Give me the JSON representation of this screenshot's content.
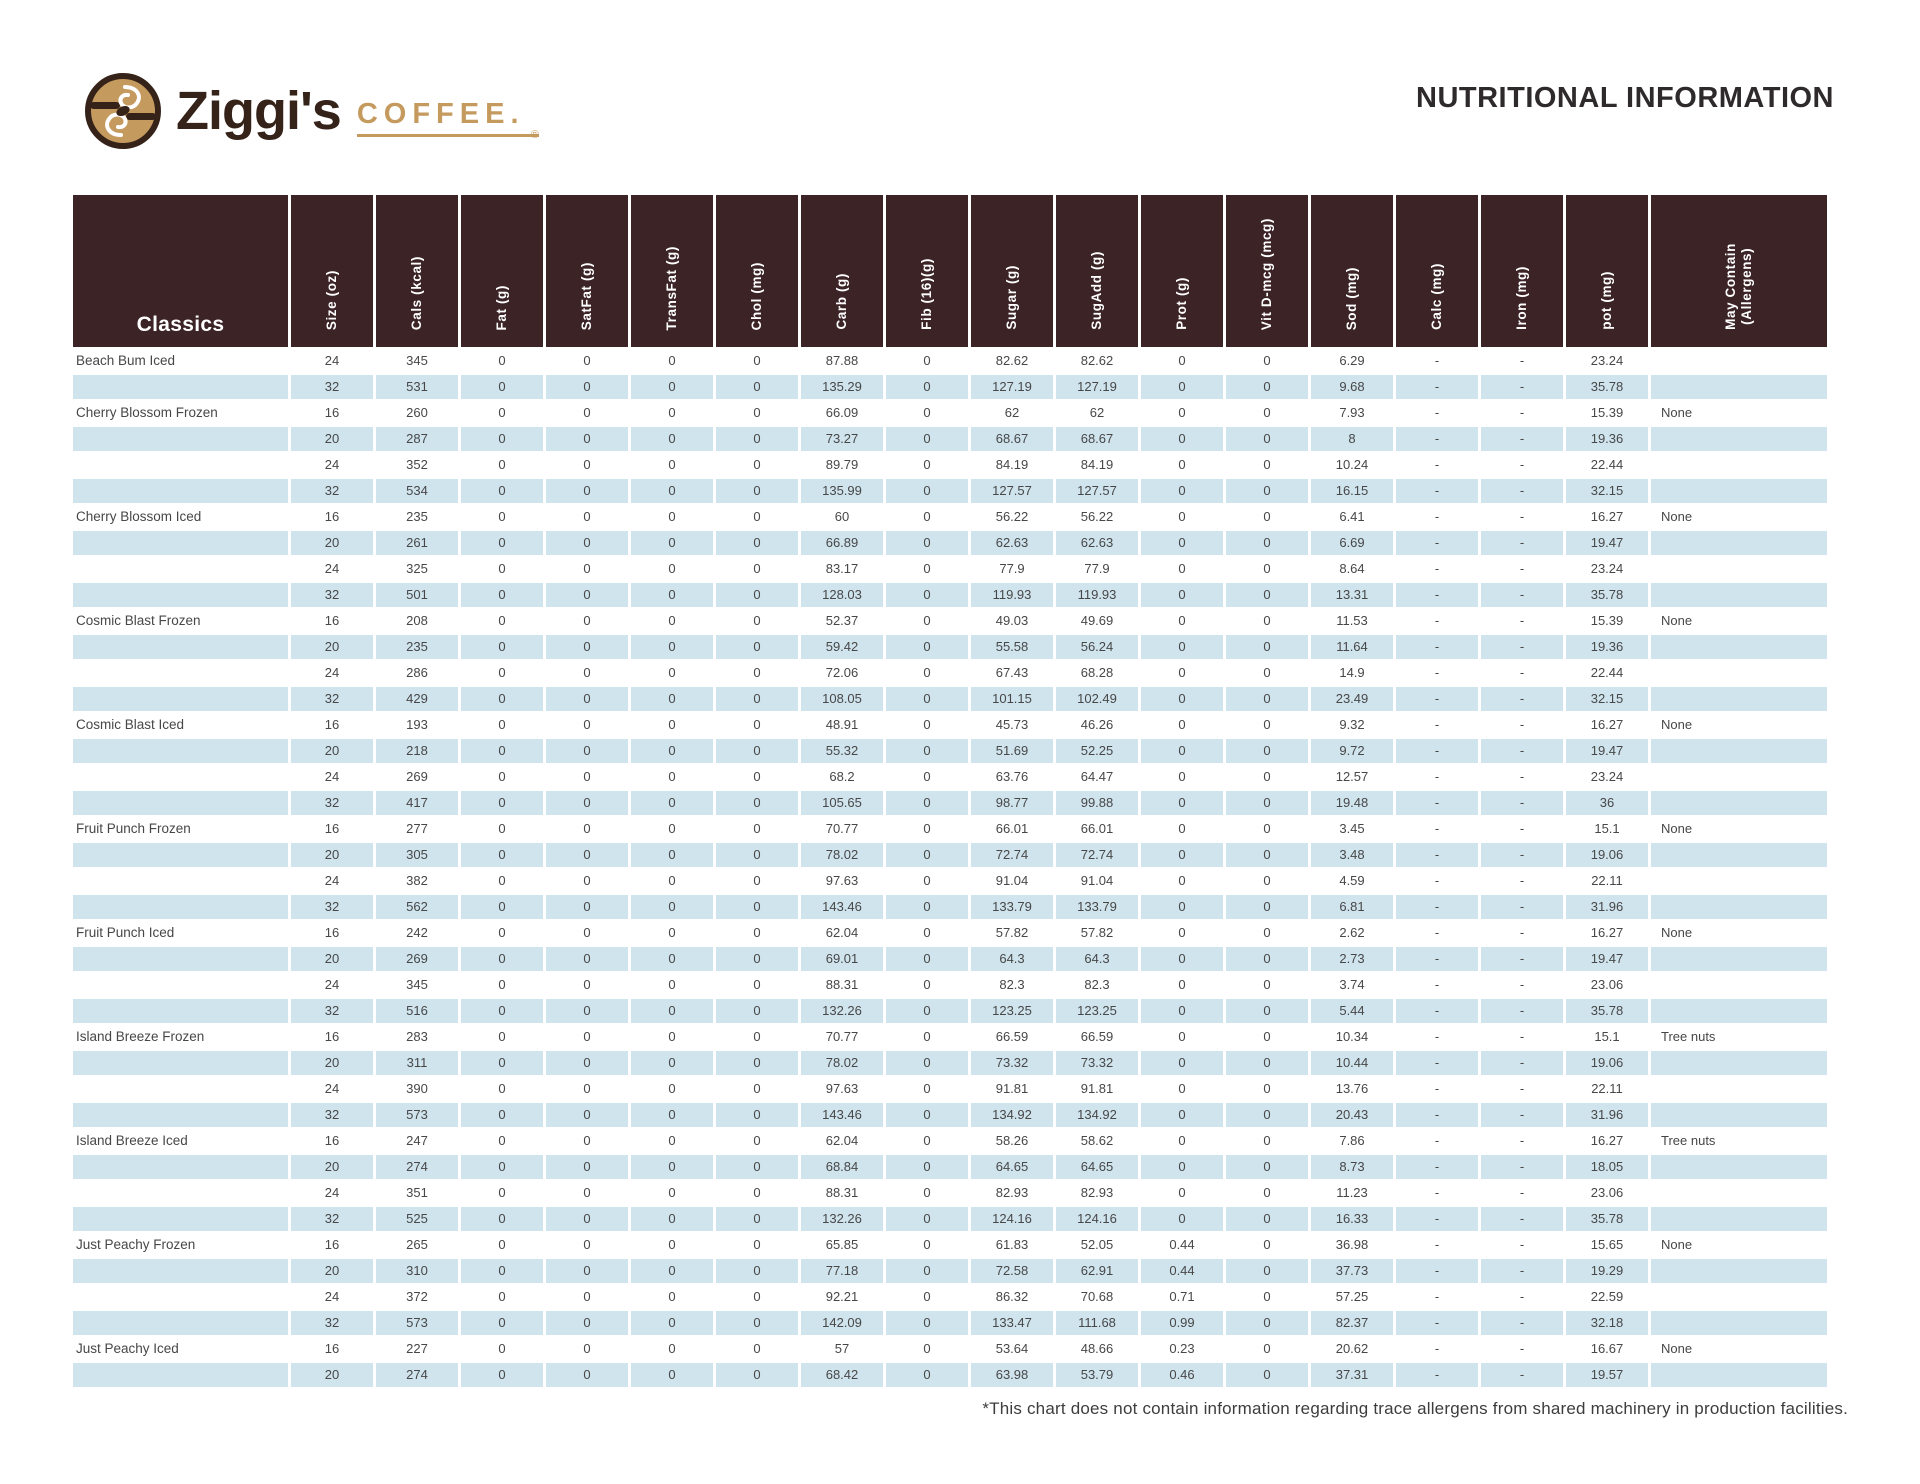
{
  "brand": {
    "name": "Ziggi's",
    "word": "COFFEE.",
    "reg": "®"
  },
  "page_title": "NUTRITIONAL INFORMATION",
  "table": {
    "group_label": "Classics",
    "columns": [
      "Size (oz)",
      "Cals (kcal)",
      "Fat (g)",
      "SatFat (g)",
      "TransFat (g)",
      "Chol (mg)",
      "Carb (g)",
      "Fib (16)(g)",
      "Sugar (g)",
      "SugAdd (g)",
      "Prot (g)",
      "Vit D-mcg (mcg)",
      "Sod (mg)",
      "Calc (mg)",
      "Iron (mg)",
      "pot (mg)",
      "May Contain\n(Allergens)"
    ],
    "rows": [
      {
        "name": "Beach Bum Iced",
        "values": [
          "24",
          "345",
          "0",
          "0",
          "0",
          "0",
          "87.88",
          "0",
          "82.62",
          "82.62",
          "0",
          "0",
          "6.29",
          "-",
          "-",
          "23.24"
        ],
        "allergen": ""
      },
      {
        "name": "",
        "values": [
          "32",
          "531",
          "0",
          "0",
          "0",
          "0",
          "135.29",
          "0",
          "127.19",
          "127.19",
          "0",
          "0",
          "9.68",
          "-",
          "-",
          "35.78"
        ],
        "allergen": ""
      },
      {
        "name": "Cherry Blossom Frozen",
        "values": [
          "16",
          "260",
          "0",
          "0",
          "0",
          "0",
          "66.09",
          "0",
          "62",
          "62",
          "0",
          "0",
          "7.93",
          "-",
          "-",
          "15.39"
        ],
        "allergen": "None"
      },
      {
        "name": "",
        "values": [
          "20",
          "287",
          "0",
          "0",
          "0",
          "0",
          "73.27",
          "0",
          "68.67",
          "68.67",
          "0",
          "0",
          "8",
          "-",
          "-",
          "19.36"
        ],
        "allergen": ""
      },
      {
        "name": "",
        "values": [
          "24",
          "352",
          "0",
          "0",
          "0",
          "0",
          "89.79",
          "0",
          "84.19",
          "84.19",
          "0",
          "0",
          "10.24",
          "-",
          "-",
          "22.44"
        ],
        "allergen": ""
      },
      {
        "name": "",
        "values": [
          "32",
          "534",
          "0",
          "0",
          "0",
          "0",
          "135.99",
          "0",
          "127.57",
          "127.57",
          "0",
          "0",
          "16.15",
          "-",
          "-",
          "32.15"
        ],
        "allergen": ""
      },
      {
        "name": "Cherry Blossom Iced",
        "values": [
          "16",
          "235",
          "0",
          "0",
          "0",
          "0",
          "60",
          "0",
          "56.22",
          "56.22",
          "0",
          "0",
          "6.41",
          "-",
          "-",
          "16.27"
        ],
        "allergen": "None"
      },
      {
        "name": "",
        "values": [
          "20",
          "261",
          "0",
          "0",
          "0",
          "0",
          "66.89",
          "0",
          "62.63",
          "62.63",
          "0",
          "0",
          "6.69",
          "-",
          "-",
          "19.47"
        ],
        "allergen": ""
      },
      {
        "name": "",
        "values": [
          "24",
          "325",
          "0",
          "0",
          "0",
          "0",
          "83.17",
          "0",
          "77.9",
          "77.9",
          "0",
          "0",
          "8.64",
          "-",
          "-",
          "23.24"
        ],
        "allergen": ""
      },
      {
        "name": "",
        "values": [
          "32",
          "501",
          "0",
          "0",
          "0",
          "0",
          "128.03",
          "0",
          "119.93",
          "119.93",
          "0",
          "0",
          "13.31",
          "-",
          "-",
          "35.78"
        ],
        "allergen": ""
      },
      {
        "name": "Cosmic Blast Frozen",
        "values": [
          "16",
          "208",
          "0",
          "0",
          "0",
          "0",
          "52.37",
          "0",
          "49.03",
          "49.69",
          "0",
          "0",
          "11.53",
          "-",
          "-",
          "15.39"
        ],
        "allergen": "None"
      },
      {
        "name": "",
        "values": [
          "20",
          "235",
          "0",
          "0",
          "0",
          "0",
          "59.42",
          "0",
          "55.58",
          "56.24",
          "0",
          "0",
          "11.64",
          "-",
          "-",
          "19.36"
        ],
        "allergen": ""
      },
      {
        "name": "",
        "values": [
          "24",
          "286",
          "0",
          "0",
          "0",
          "0",
          "72.06",
          "0",
          "67.43",
          "68.28",
          "0",
          "0",
          "14.9",
          "-",
          "-",
          "22.44"
        ],
        "allergen": ""
      },
      {
        "name": "",
        "values": [
          "32",
          "429",
          "0",
          "0",
          "0",
          "0",
          "108.05",
          "0",
          "101.15",
          "102.49",
          "0",
          "0",
          "23.49",
          "-",
          "-",
          "32.15"
        ],
        "allergen": ""
      },
      {
        "name": "Cosmic Blast Iced",
        "values": [
          "16",
          "193",
          "0",
          "0",
          "0",
          "0",
          "48.91",
          "0",
          "45.73",
          "46.26",
          "0",
          "0",
          "9.32",
          "-",
          "-",
          "16.27"
        ],
        "allergen": "None"
      },
      {
        "name": "",
        "values": [
          "20",
          "218",
          "0",
          "0",
          "0",
          "0",
          "55.32",
          "0",
          "51.69",
          "52.25",
          "0",
          "0",
          "9.72",
          "-",
          "-",
          "19.47"
        ],
        "allergen": ""
      },
      {
        "name": "",
        "values": [
          "24",
          "269",
          "0",
          "0",
          "0",
          "0",
          "68.2",
          "0",
          "63.76",
          "64.47",
          "0",
          "0",
          "12.57",
          "-",
          "-",
          "23.24"
        ],
        "allergen": ""
      },
      {
        "name": "",
        "values": [
          "32",
          "417",
          "0",
          "0",
          "0",
          "0",
          "105.65",
          "0",
          "98.77",
          "99.88",
          "0",
          "0",
          "19.48",
          "-",
          "-",
          "36"
        ],
        "allergen": ""
      },
      {
        "name": "Fruit Punch Frozen",
        "values": [
          "16",
          "277",
          "0",
          "0",
          "0",
          "0",
          "70.77",
          "0",
          "66.01",
          "66.01",
          "0",
          "0",
          "3.45",
          "-",
          "-",
          "15.1"
        ],
        "allergen": "None"
      },
      {
        "name": "",
        "values": [
          "20",
          "305",
          "0",
          "0",
          "0",
          "0",
          "78.02",
          "0",
          "72.74",
          "72.74",
          "0",
          "0",
          "3.48",
          "-",
          "-",
          "19.06"
        ],
        "allergen": ""
      },
      {
        "name": "",
        "values": [
          "24",
          "382",
          "0",
          "0",
          "0",
          "0",
          "97.63",
          "0",
          "91.04",
          "91.04",
          "0",
          "0",
          "4.59",
          "-",
          "-",
          "22.11"
        ],
        "allergen": ""
      },
      {
        "name": "",
        "values": [
          "32",
          "562",
          "0",
          "0",
          "0",
          "0",
          "143.46",
          "0",
          "133.79",
          "133.79",
          "0",
          "0",
          "6.81",
          "-",
          "-",
          "31.96"
        ],
        "allergen": ""
      },
      {
        "name": "Fruit Punch Iced",
        "values": [
          "16",
          "242",
          "0",
          "0",
          "0",
          "0",
          "62.04",
          "0",
          "57.82",
          "57.82",
          "0",
          "0",
          "2.62",
          "-",
          "-",
          "16.27"
        ],
        "allergen": "None"
      },
      {
        "name": "",
        "values": [
          "20",
          "269",
          "0",
          "0",
          "0",
          "0",
          "69.01",
          "0",
          "64.3",
          "64.3",
          "0",
          "0",
          "2.73",
          "-",
          "-",
          "19.47"
        ],
        "allergen": ""
      },
      {
        "name": "",
        "values": [
          "24",
          "345",
          "0",
          "0",
          "0",
          "0",
          "88.31",
          "0",
          "82.3",
          "82.3",
          "0",
          "0",
          "3.74",
          "-",
          "-",
          "23.06"
        ],
        "allergen": ""
      },
      {
        "name": "",
        "values": [
          "32",
          "516",
          "0",
          "0",
          "0",
          "0",
          "132.26",
          "0",
          "123.25",
          "123.25",
          "0",
          "0",
          "5.44",
          "-",
          "-",
          "35.78"
        ],
        "allergen": ""
      },
      {
        "name": "Island Breeze Frozen",
        "values": [
          "16",
          "283",
          "0",
          "0",
          "0",
          "0",
          "70.77",
          "0",
          "66.59",
          "66.59",
          "0",
          "0",
          "10.34",
          "-",
          "-",
          "15.1"
        ],
        "allergen": "Tree nuts"
      },
      {
        "name": "",
        "values": [
          "20",
          "311",
          "0",
          "0",
          "0",
          "0",
          "78.02",
          "0",
          "73.32",
          "73.32",
          "0",
          "0",
          "10.44",
          "-",
          "-",
          "19.06"
        ],
        "allergen": ""
      },
      {
        "name": "",
        "values": [
          "24",
          "390",
          "0",
          "0",
          "0",
          "0",
          "97.63",
          "0",
          "91.81",
          "91.81",
          "0",
          "0",
          "13.76",
          "-",
          "-",
          "22.11"
        ],
        "allergen": ""
      },
      {
        "name": "",
        "values": [
          "32",
          "573",
          "0",
          "0",
          "0",
          "0",
          "143.46",
          "0",
          "134.92",
          "134.92",
          "0",
          "0",
          "20.43",
          "-",
          "-",
          "31.96"
        ],
        "allergen": ""
      },
      {
        "name": "Island Breeze Iced",
        "values": [
          "16",
          "247",
          "0",
          "0",
          "0",
          "0",
          "62.04",
          "0",
          "58.26",
          "58.62",
          "0",
          "0",
          "7.86",
          "-",
          "-",
          "16.27"
        ],
        "allergen": "Tree nuts"
      },
      {
        "name": "",
        "values": [
          "20",
          "274",
          "0",
          "0",
          "0",
          "0",
          "68.84",
          "0",
          "64.65",
          "64.65",
          "0",
          "0",
          "8.73",
          "-",
          "-",
          "18.05"
        ],
        "allergen": ""
      },
      {
        "name": "",
        "values": [
          "24",
          "351",
          "0",
          "0",
          "0",
          "0",
          "88.31",
          "0",
          "82.93",
          "82.93",
          "0",
          "0",
          "11.23",
          "-",
          "-",
          "23.06"
        ],
        "allergen": ""
      },
      {
        "name": "",
        "values": [
          "32",
          "525",
          "0",
          "0",
          "0",
          "0",
          "132.26",
          "0",
          "124.16",
          "124.16",
          "0",
          "0",
          "16.33",
          "-",
          "-",
          "35.78"
        ],
        "allergen": ""
      },
      {
        "name": "Just Peachy Frozen",
        "values": [
          "16",
          "265",
          "0",
          "0",
          "0",
          "0",
          "65.85",
          "0",
          "61.83",
          "52.05",
          "0.44",
          "0",
          "36.98",
          "-",
          "-",
          "15.65"
        ],
        "allergen": "None"
      },
      {
        "name": "",
        "values": [
          "20",
          "310",
          "0",
          "0",
          "0",
          "0",
          "77.18",
          "0",
          "72.58",
          "62.91",
          "0.44",
          "0",
          "37.73",
          "-",
          "-",
          "19.29"
        ],
        "allergen": ""
      },
      {
        "name": "",
        "values": [
          "24",
          "372",
          "0",
          "0",
          "0",
          "0",
          "92.21",
          "0",
          "86.32",
          "70.68",
          "0.71",
          "0",
          "57.25",
          "-",
          "-",
          "22.59"
        ],
        "allergen": ""
      },
      {
        "name": "",
        "values": [
          "32",
          "573",
          "0",
          "0",
          "0",
          "0",
          "142.09",
          "0",
          "133.47",
          "111.68",
          "0.99",
          "0",
          "82.37",
          "-",
          "-",
          "32.18"
        ],
        "allergen": ""
      },
      {
        "name": "Just Peachy Iced",
        "values": [
          "16",
          "227",
          "0",
          "0",
          "0",
          "0",
          "57",
          "0",
          "53.64",
          "48.66",
          "0.23",
          "0",
          "20.62",
          "-",
          "-",
          "16.67"
        ],
        "allergen": "None"
      },
      {
        "name": "",
        "values": [
          "20",
          "274",
          "0",
          "0",
          "0",
          "0",
          "68.42",
          "0",
          "63.98",
          "53.79",
          "0.46",
          "0",
          "37.31",
          "-",
          "-",
          "19.57"
        ],
        "allergen": ""
      }
    ]
  },
  "footnote": "*This chart does not contain information regarding trace allergens from shared machinery in production facilities.",
  "colors": {
    "header_bg": "#3b2326",
    "row_alt": "#d0e4ee",
    "brand_tan": "#c49a5e",
    "brand_brown": "#35231a",
    "text": "#474747",
    "title_color": "#2e2a2b"
  }
}
